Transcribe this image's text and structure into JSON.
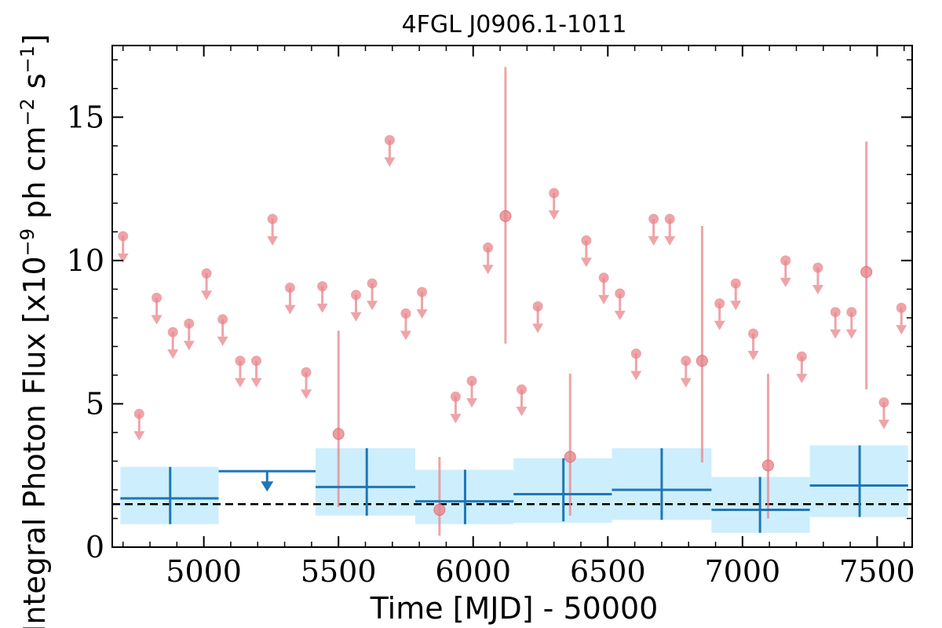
{
  "chart_data": {
    "type": "scatter",
    "title": "4FGL J0906.1-1011",
    "xlabel": "Time [MJD] - 50000",
    "ylabel": "Integral Photon Flux [x10",
    "ylabel_exp": "−9",
    "ylabel_mid": " ph cm",
    "ylabel_exp2": "−2",
    "ylabel_end": " s",
    "ylabel_exp3": "−1",
    "ylabel_close": "]",
    "xlim": [
      4660,
      7630
    ],
    "ylim": [
      0,
      17.5
    ],
    "xticks": [
      5000,
      5500,
      6000,
      6500,
      7000,
      7500
    ],
    "yticks": [
      0,
      5,
      10,
      15
    ],
    "reference_line": 1.5,
    "colors": {
      "short_bins": "#e8868b",
      "long_bins": "#1f77b4",
      "band": "#cdeefc",
      "reference": "#000000"
    },
    "series": [
      {
        "bin": "short",
        "upper_limits": [
          {
            "x": 4700,
            "y": 10.85
          },
          {
            "x": 4760,
            "y": 4.65
          },
          {
            "x": 4825,
            "y": 8.7
          },
          {
            "x": 4885,
            "y": 7.5
          },
          {
            "x": 4945,
            "y": 7.8
          },
          {
            "x": 5010,
            "y": 9.55
          },
          {
            "x": 5070,
            "y": 7.95
          },
          {
            "x": 5135,
            "y": 6.5
          },
          {
            "x": 5195,
            "y": 6.5
          },
          {
            "x": 5255,
            "y": 11.45
          },
          {
            "x": 5320,
            "y": 9.05
          },
          {
            "x": 5380,
            "y": 6.1
          },
          {
            "x": 5440,
            "y": 9.1
          },
          {
            "x": 5565,
            "y": 8.8
          },
          {
            "x": 5625,
            "y": 9.2
          },
          {
            "x": 5690,
            "y": 14.2
          },
          {
            "x": 5750,
            "y": 8.15
          },
          {
            "x": 5810,
            "y": 8.9
          },
          {
            "x": 5935,
            "y": 5.25
          },
          {
            "x": 5995,
            "y": 5.8
          },
          {
            "x": 6055,
            "y": 10.45
          },
          {
            "x": 6180,
            "y": 5.5
          },
          {
            "x": 6240,
            "y": 8.4
          },
          {
            "x": 6300,
            "y": 12.35
          },
          {
            "x": 6420,
            "y": 10.7
          },
          {
            "x": 6485,
            "y": 9.4
          },
          {
            "x": 6545,
            "y": 8.85
          },
          {
            "x": 6605,
            "y": 6.75
          },
          {
            "x": 6670,
            "y": 11.45
          },
          {
            "x": 6730,
            "y": 11.45
          },
          {
            "x": 6790,
            "y": 6.5
          },
          {
            "x": 6915,
            "y": 8.5
          },
          {
            "x": 6975,
            "y": 9.2
          },
          {
            "x": 7040,
            "y": 7.45
          },
          {
            "x": 7160,
            "y": 10.0
          },
          {
            "x": 7220,
            "y": 6.65
          },
          {
            "x": 7280,
            "y": 9.75
          },
          {
            "x": 7345,
            "y": 8.2
          },
          {
            "x": 7405,
            "y": 8.2
          },
          {
            "x": 7525,
            "y": 5.05
          },
          {
            "x": 7590,
            "y": 8.35
          }
        ],
        "detections": [
          {
            "x": 5500,
            "y": 3.95,
            "ylow": 1.4,
            "yhigh": 7.55
          },
          {
            "x": 5875,
            "y": 1.3,
            "ylow": 0.4,
            "yhigh": 3.15
          },
          {
            "x": 6120,
            "y": 11.55,
            "ylow": 7.1,
            "yhigh": 16.75
          },
          {
            "x": 6360,
            "y": 3.15,
            "ylow": 1.1,
            "yhigh": 6.05
          },
          {
            "x": 6850,
            "y": 6.5,
            "ylow": 2.95,
            "yhigh": 11.2
          },
          {
            "x": 7095,
            "y": 2.85,
            "ylow": 1.0,
            "yhigh": 6.05
          },
          {
            "x": 7460,
            "y": 9.6,
            "ylow": 5.5,
            "yhigh": 14.15
          }
        ]
      },
      {
        "bin": "long",
        "detections": [
          {
            "x": 4875,
            "xlow": 4690,
            "xhigh": 5055,
            "y": 1.7,
            "ylow": 0.8,
            "yhigh": 2.8,
            "band_low": 0.8,
            "band_high": 2.8
          },
          {
            "x": 5605,
            "xlow": 5415,
            "xhigh": 5785,
            "y": 2.1,
            "ylow": 1.1,
            "yhigh": 3.45,
            "band_low": 1.1,
            "band_high": 3.45
          },
          {
            "x": 5970,
            "xlow": 5785,
            "xhigh": 6150,
            "y": 1.6,
            "ylow": 0.8,
            "yhigh": 2.7,
            "band_low": 0.8,
            "band_high": 2.7
          },
          {
            "x": 6335,
            "xlow": 6150,
            "xhigh": 6515,
            "y": 1.85,
            "ylow": 0.9,
            "yhigh": 3.1,
            "band_low": 0.85,
            "band_high": 3.1
          },
          {
            "x": 6700,
            "xlow": 6515,
            "xhigh": 6885,
            "y": 2.0,
            "ylow": 0.95,
            "yhigh": 3.45,
            "band_low": 0.95,
            "band_high": 3.45
          },
          {
            "x": 7065,
            "xlow": 6885,
            "xhigh": 7250,
            "y": 1.3,
            "ylow": 0.5,
            "yhigh": 2.45,
            "band_low": 0.5,
            "band_high": 2.45
          },
          {
            "x": 7435,
            "xlow": 7250,
            "xhigh": 7615,
            "y": 2.15,
            "ylow": 1.05,
            "yhigh": 3.55,
            "band_low": 1.05,
            "band_high": 3.55
          }
        ],
        "upper_limits": [
          {
            "x": 5235,
            "xlow": 5055,
            "xhigh": 5415,
            "y": 2.65
          }
        ]
      }
    ]
  }
}
